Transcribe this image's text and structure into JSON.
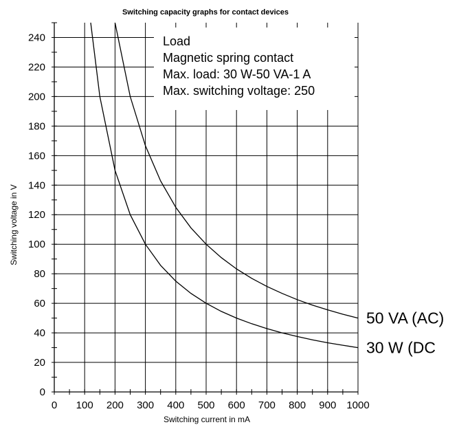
{
  "chart_data": {
    "type": "line",
    "title": "Switching capacity graphs for contact devices",
    "xlabel": "Switching current in mA",
    "ylabel": "Switching voltage in V",
    "xlim": [
      0,
      1000
    ],
    "ylim": [
      0,
      250
    ],
    "x_ticks": [
      0,
      100,
      200,
      300,
      400,
      500,
      600,
      700,
      800,
      900,
      1000
    ],
    "y_ticks": [
      0,
      20,
      40,
      60,
      80,
      100,
      120,
      140,
      160,
      180,
      200,
      220,
      240
    ],
    "grid": true,
    "legend_box_position": "top-right",
    "legend_lines": [
      "Load",
      "Magnetic spring contact",
      "Max. load: 30 W-50 VA-1 A",
      "Max. switching voltage: 250"
    ],
    "series": [
      {
        "name": "50 VA (AC)",
        "x": [
          200,
          250,
          300,
          350,
          400,
          450,
          500,
          550,
          600,
          650,
          700,
          750,
          800,
          850,
          900,
          950,
          1000
        ],
        "y": [
          250,
          200,
          166.7,
          142.9,
          125,
          111.1,
          100,
          90.9,
          83.3,
          76.9,
          71.4,
          66.7,
          62.5,
          58.8,
          55.6,
          52.6,
          50
        ]
      },
      {
        "name": "30 W (DC",
        "x": [
          120,
          150,
          200,
          250,
          300,
          350,
          400,
          450,
          500,
          550,
          600,
          650,
          700,
          750,
          800,
          850,
          900,
          950,
          1000
        ],
        "y": [
          250,
          200,
          150,
          120,
          100,
          85.7,
          75,
          66.7,
          60,
          54.5,
          50,
          46.2,
          42.9,
          40,
          37.5,
          35.3,
          33.3,
          31.6,
          30
        ]
      }
    ]
  }
}
